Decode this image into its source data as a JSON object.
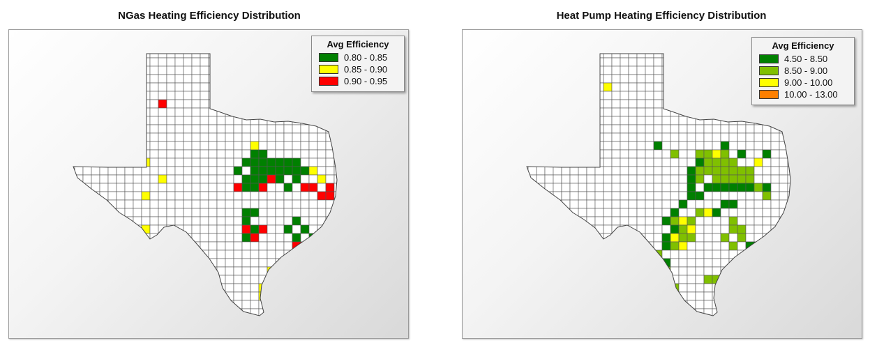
{
  "panels": [
    {
      "title": "NGas Heating Efficiency Distribution",
      "legend": {
        "title": "Avg Efficiency",
        "items": [
          {
            "label": "0.80 - 0.85",
            "color": "#008000"
          },
          {
            "label": "0.85 - 0.90",
            "color": "#ffff00"
          },
          {
            "label": "0.90 - 0.95",
            "color": "#ff0000"
          }
        ]
      }
    },
    {
      "title": "Heat Pump Heating Efficiency Distribution",
      "legend": {
        "title": "Avg Efficiency",
        "items": [
          {
            "label": "4.50 - 8.50",
            "color": "#008000"
          },
          {
            "label": "8.50 - 9.00",
            "color": "#80c000"
          },
          {
            "label": "9.00 - 10.00",
            "color": "#ffff00"
          },
          {
            "label": "10.00 - 13.00",
            "color": "#ff8000"
          }
        ]
      }
    }
  ]
}
